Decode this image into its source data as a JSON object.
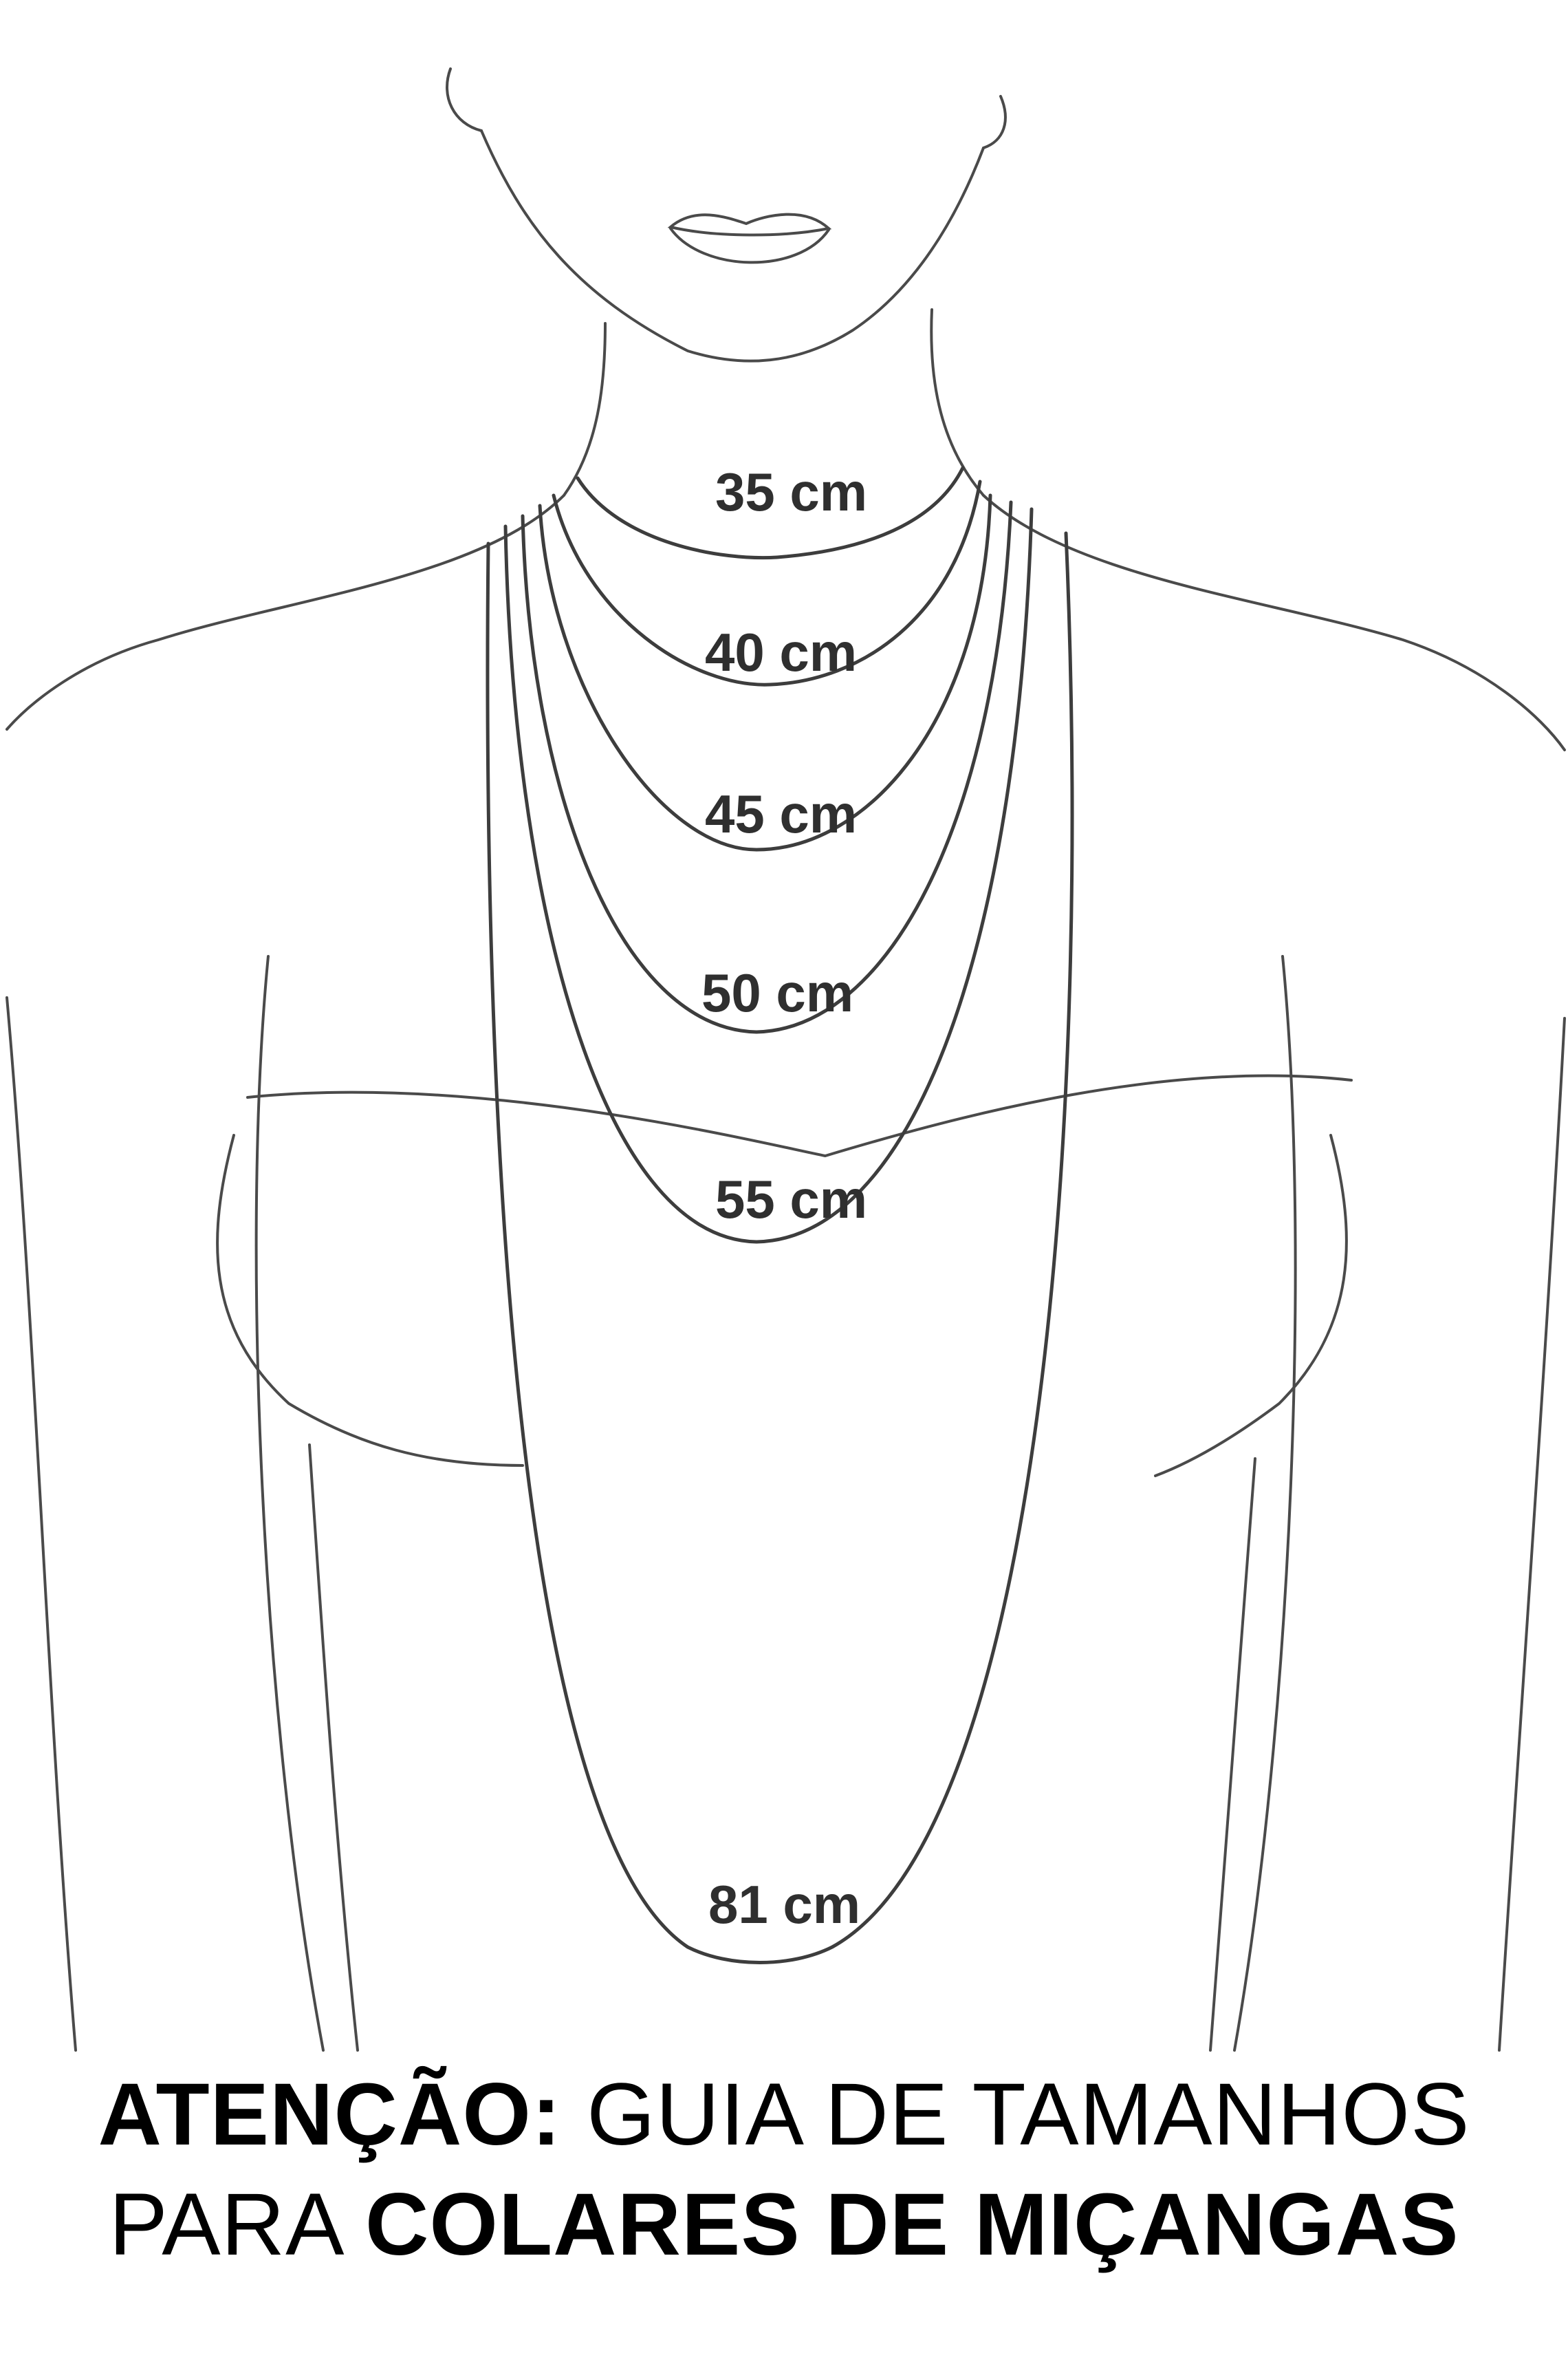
{
  "necklace_lengths": [
    "35 cm",
    "40 cm",
    "45 cm",
    "50 cm",
    "55 cm",
    "81 cm"
  ],
  "caption": {
    "line1_bold": "ATENÇÃO:",
    "line1_regular": "GUIA DE TAMANHOS",
    "line2_regular": "PARA",
    "line2_bold": "COLARES DE MIÇANGAS"
  }
}
